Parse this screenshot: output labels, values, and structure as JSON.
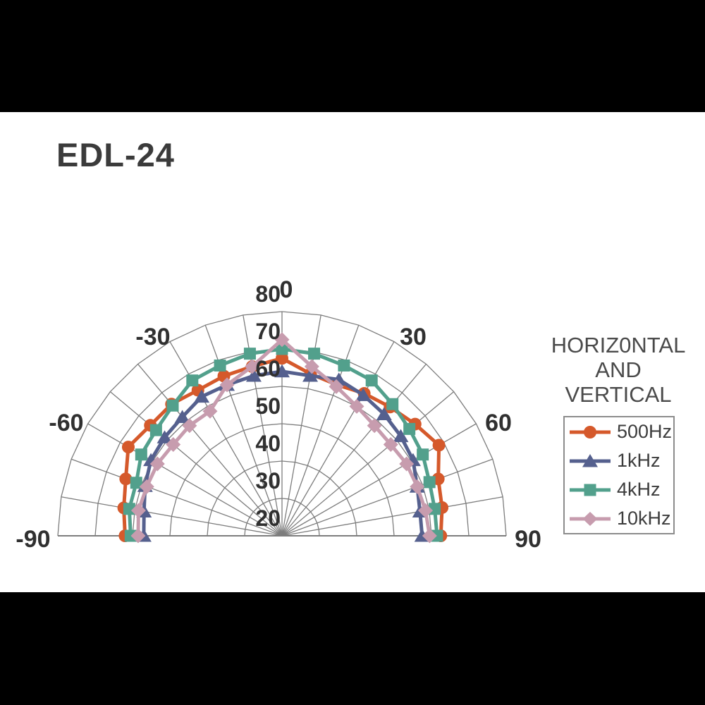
{
  "page": {
    "title": "EDL-24",
    "background": "#ffffff",
    "letterbox_color": "#000000"
  },
  "legend": {
    "title_lines": [
      "HORIZ0NTAL",
      "AND",
      "VERTICAL"
    ],
    "items": [
      {
        "label": "500Hz",
        "color": "#D5592B",
        "marker": "circle-icon"
      },
      {
        "label": "1kHz",
        "color": "#55608E",
        "marker": "triangle-icon"
      },
      {
        "label": "4kHz",
        "color": "#52A08C",
        "marker": "square-icon"
      },
      {
        "label": "10kHz",
        "color": "#C79CAE",
        "marker": "diamond-icon"
      }
    ]
  },
  "chart_data": {
    "type": "line",
    "subtype": "half-polar-radar",
    "title": "EDL-24",
    "legend_title": "HORIZ0NTAL AND VERTICAL",
    "legend_position": "right",
    "grid": true,
    "grid_color": "#7d7d7d",
    "text_color": "#303030",
    "angle_axis": {
      "range_deg": [
        -90,
        90
      ],
      "grid_step_deg": 10,
      "ticks_deg": [
        -90,
        -60,
        -30,
        0,
        30,
        60,
        90
      ]
    },
    "radial_axis": {
      "min": 20,
      "max": 80,
      "ticks": [
        20,
        30,
        40,
        50,
        60,
        70,
        80
      ]
    },
    "angles_deg": [
      -90,
      -80,
      -70,
      -60,
      -50,
      -40,
      -30,
      -20,
      -10,
      0,
      10,
      20,
      30,
      40,
      50,
      60,
      70,
      80,
      90
    ],
    "series": [
      {
        "name": "500Hz",
        "color": "#D5592B",
        "marker": "circle",
        "values": [
          62,
          63,
          64.5,
          67.5,
          66,
          66,
          65,
          65.5,
          66,
          67.5,
          64,
          63,
          64,
          65,
          66.5,
          68.5,
          64.5,
          63.5,
          62.5
        ]
      },
      {
        "name": "1kHz",
        "color": "#55608E",
        "marker": "triangle",
        "values": [
          57,
          57.5,
          59,
          60.5,
          61,
          61.5,
          63,
          63,
          63.5,
          64,
          63.5,
          64.5,
          63.5,
          62.5,
          61.5,
          60.5,
          58.5,
          57.5,
          57.5
        ]
      },
      {
        "name": "4kHz",
        "color": "#52A08C",
        "marker": "square",
        "values": [
          60.5,
          61.5,
          61.5,
          63.5,
          64,
          65.5,
          68,
          68.5,
          69.5,
          70,
          69.5,
          68.5,
          68,
          66,
          64.5,
          63.5,
          62,
          61.5,
          61.5
        ]
      },
      {
        "name": "10kHz",
        "color": "#C79CAE",
        "marker": "diamond",
        "values": [
          58.5,
          59,
          58.5,
          58.5,
          58,
          58.5,
          58.5,
          63,
          66,
          72.5,
          66,
          62.5,
          60,
          58.5,
          58,
          58.5,
          58.5,
          59,
          59.5
        ]
      }
    ]
  }
}
